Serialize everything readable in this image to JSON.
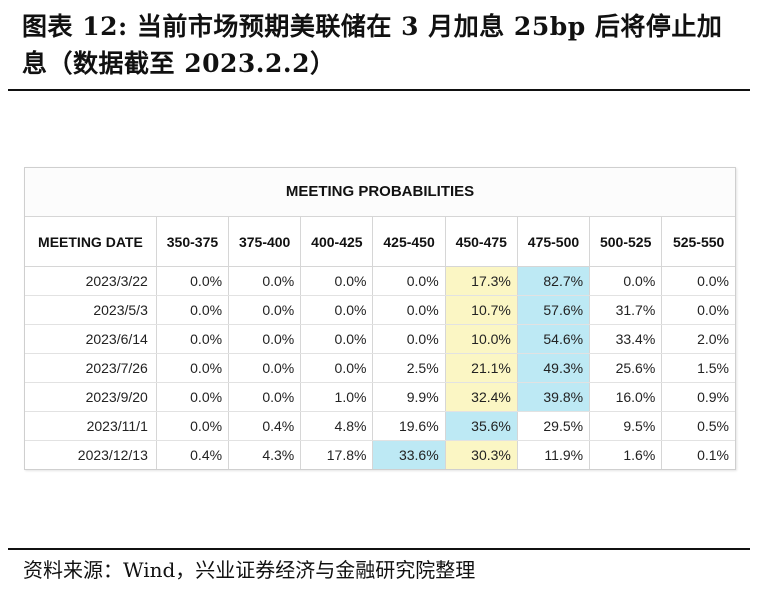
{
  "figure": {
    "title": "图表 12:  当前市场预期美联储在 3 月加息 25bp 后将停止加息（数据截至 2023.2.2）",
    "source": "资料来源：Wind，兴业证券经济与金融研究院整理"
  },
  "table": {
    "heading": "MEETING PROBABILITIES",
    "columns": [
      "MEETING DATE",
      "350-375",
      "375-400",
      "400-425",
      "425-450",
      "450-475",
      "475-500",
      "500-525",
      "525-550"
    ],
    "rows": [
      {
        "date": "2023/3/22",
        "values": [
          "0.0%",
          "0.0%",
          "0.0%",
          "0.0%",
          "17.3%",
          "82.7%",
          "0.0%",
          "0.0%"
        ],
        "highlights": [
          "",
          "",
          "",
          "",
          "y",
          "b",
          "",
          ""
        ]
      },
      {
        "date": "2023/5/3",
        "values": [
          "0.0%",
          "0.0%",
          "0.0%",
          "0.0%",
          "10.7%",
          "57.6%",
          "31.7%",
          "0.0%"
        ],
        "highlights": [
          "",
          "",
          "",
          "",
          "y",
          "b",
          "",
          ""
        ]
      },
      {
        "date": "2023/6/14",
        "values": [
          "0.0%",
          "0.0%",
          "0.0%",
          "0.0%",
          "10.0%",
          "54.6%",
          "33.4%",
          "2.0%"
        ],
        "highlights": [
          "",
          "",
          "",
          "",
          "y",
          "b",
          "",
          ""
        ]
      },
      {
        "date": "2023/7/26",
        "values": [
          "0.0%",
          "0.0%",
          "0.0%",
          "2.5%",
          "21.1%",
          "49.3%",
          "25.6%",
          "1.5%"
        ],
        "highlights": [
          "",
          "",
          "",
          "",
          "y",
          "b",
          "",
          ""
        ]
      },
      {
        "date": "2023/9/20",
        "values": [
          "0.0%",
          "0.0%",
          "1.0%",
          "9.9%",
          "32.4%",
          "39.8%",
          "16.0%",
          "0.9%"
        ],
        "highlights": [
          "",
          "",
          "",
          "",
          "y",
          "b",
          "",
          ""
        ]
      },
      {
        "date": "2023/11/1",
        "values": [
          "0.0%",
          "0.4%",
          "4.8%",
          "19.6%",
          "35.6%",
          "29.5%",
          "9.5%",
          "0.5%"
        ],
        "highlights": [
          "",
          "",
          "",
          "",
          "b",
          "",
          "",
          ""
        ]
      },
      {
        "date": "2023/12/13",
        "values": [
          "0.4%",
          "4.3%",
          "17.8%",
          "33.6%",
          "30.3%",
          "11.9%",
          "1.6%",
          "0.1%"
        ],
        "highlights": [
          "",
          "",
          "",
          "b",
          "y",
          "",
          "",
          ""
        ]
      }
    ],
    "colors": {
      "yellow_highlight": "#fbf6c4",
      "blue_highlight": "#bde9f4"
    }
  }
}
